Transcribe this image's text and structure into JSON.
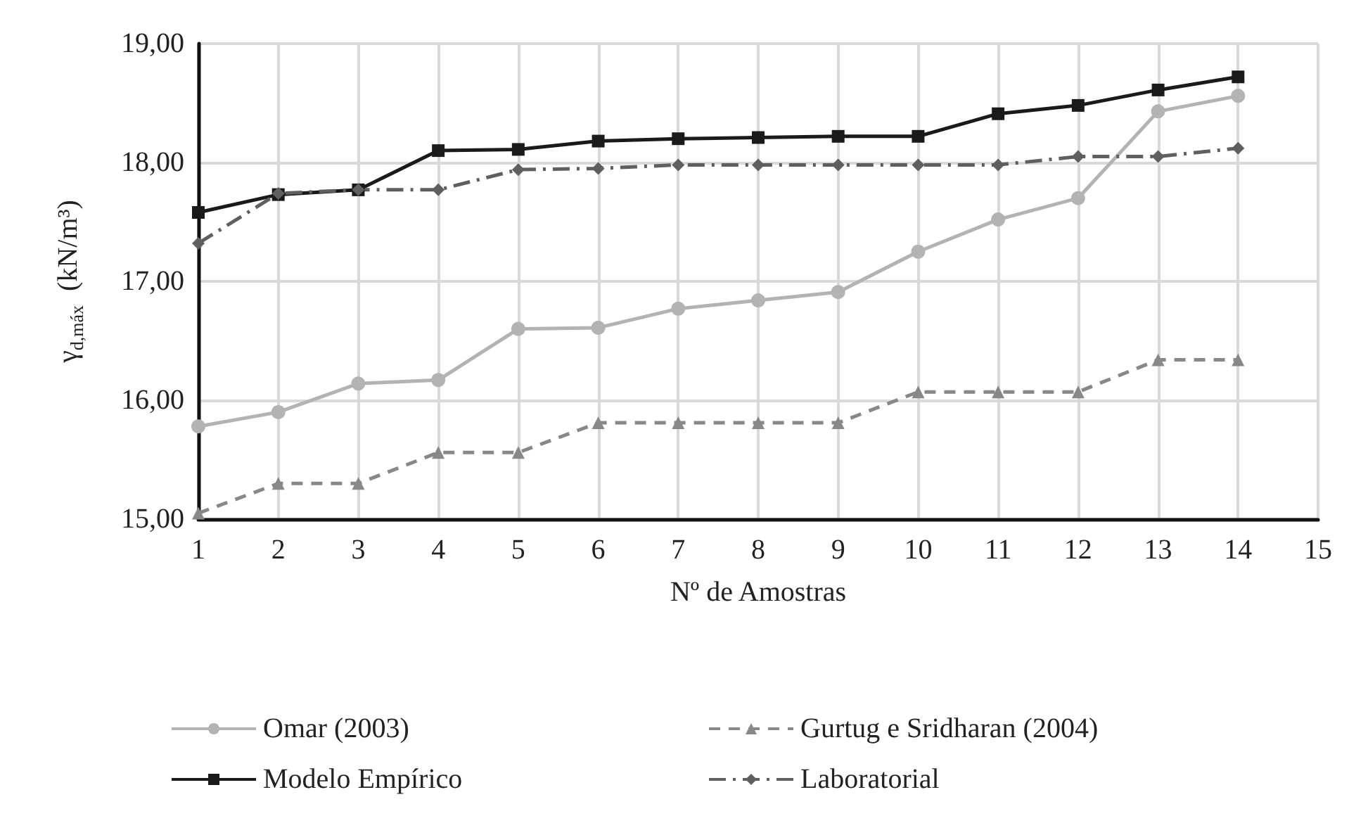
{
  "chart_data": {
    "type": "line",
    "xlabel": "Nº de Amostras",
    "ylabel": "γ$_{d,máx}$  (kN/m³)",
    "x": [
      1,
      2,
      3,
      4,
      5,
      6,
      7,
      8,
      9,
      10,
      11,
      12,
      13,
      14
    ],
    "xlim": [
      1,
      15
    ],
    "xticks": [
      1,
      2,
      3,
      4,
      5,
      6,
      7,
      8,
      9,
      10,
      11,
      12,
      13,
      14,
      15
    ],
    "ylim": [
      15,
      19
    ],
    "yticks": [
      {
        "value": 15,
        "label": "15,00"
      },
      {
        "value": 16,
        "label": "16,00"
      },
      {
        "value": 17,
        "label": "17,00"
      },
      {
        "value": 18,
        "label": "18,00"
      },
      {
        "value": 19,
        "label": "19,00"
      }
    ],
    "grid": true,
    "legend": "bottom",
    "series": [
      {
        "name": "Omar (2003)",
        "color": "#b3b3b3",
        "marker": "circle",
        "line_style": "solid",
        "values": [
          15.78,
          15.9,
          16.14,
          16.17,
          16.6,
          16.61,
          16.77,
          16.84,
          16.91,
          17.25,
          17.52,
          17.7,
          18.43,
          18.56
        ]
      },
      {
        "name": "Gurtug e Sridharan (2004)",
        "color": "#888888",
        "marker": "triangle",
        "line_style": "dashed",
        "values": [
          15.05,
          15.3,
          15.3,
          15.56,
          15.56,
          15.81,
          15.81,
          15.81,
          15.81,
          16.07,
          16.07,
          16.07,
          16.34,
          16.34
        ]
      },
      {
        "name": "Modelo Empírico",
        "color": "#1a1a1a",
        "marker": "square",
        "line_style": "solid",
        "values": [
          17.58,
          17.73,
          17.77,
          18.1,
          18.11,
          18.18,
          18.2,
          18.21,
          18.22,
          18.22,
          18.41,
          18.48,
          18.61,
          18.72
        ]
      },
      {
        "name": "Laboratorial",
        "color": "#5f5f5f",
        "marker": "diamond",
        "line_style": "dashdot",
        "values": [
          17.32,
          17.74,
          17.77,
          17.77,
          17.94,
          17.95,
          17.98,
          17.98,
          17.98,
          17.98,
          17.98,
          18.05,
          18.05,
          18.12
        ]
      }
    ]
  }
}
